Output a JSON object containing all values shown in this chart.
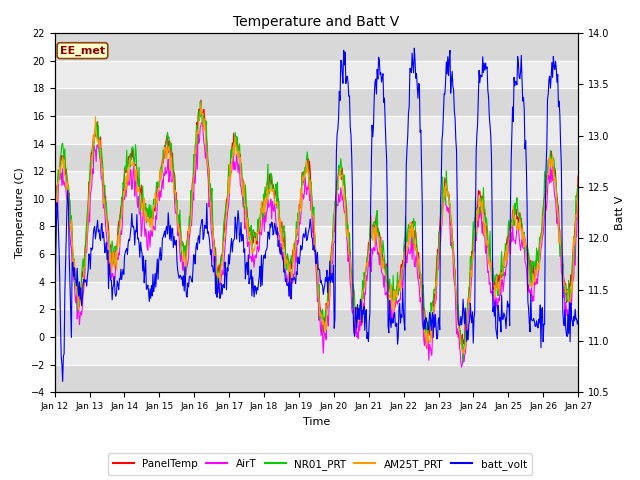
{
  "title": "Temperature and Batt V",
  "xlabel": "Time",
  "ylabel_left": "Temperature (C)",
  "ylabel_right": "Batt V",
  "ylim_left": [
    -4,
    22
  ],
  "ylim_right": [
    10.5,
    14.0
  ],
  "yticks_left": [
    -4,
    -2,
    0,
    2,
    4,
    6,
    8,
    10,
    12,
    14,
    16,
    18,
    20,
    22
  ],
  "yticks_right": [
    10.5,
    11.0,
    11.5,
    12.0,
    12.5,
    13.0,
    13.5,
    14.0
  ],
  "xtick_labels": [
    "Jan 12",
    "Jan 13",
    "Jan 14",
    "Jan 15",
    "Jan 16",
    "Jan 17",
    "Jan 18",
    "Jan 19",
    "Jan 20",
    "Jan 21",
    "Jan 22",
    "Jan 23",
    "Jan 24",
    "Jan 25",
    "Jan 26",
    "Jan 27"
  ],
  "colors": {
    "PanelTemp": "#ff0000",
    "AirT": "#ff00ff",
    "NR01_PRT": "#00cc00",
    "AM25T_PRT": "#ff9900",
    "batt_volt": "#0000ff"
  },
  "station_label": "EE_met",
  "background_color": "#ffffff",
  "plot_bg_color": "#d8d8d8",
  "stripe_color": "#ebebeb",
  "n_points": 720,
  "figsize": [
    6.4,
    4.8
  ],
  "dpi": 100
}
